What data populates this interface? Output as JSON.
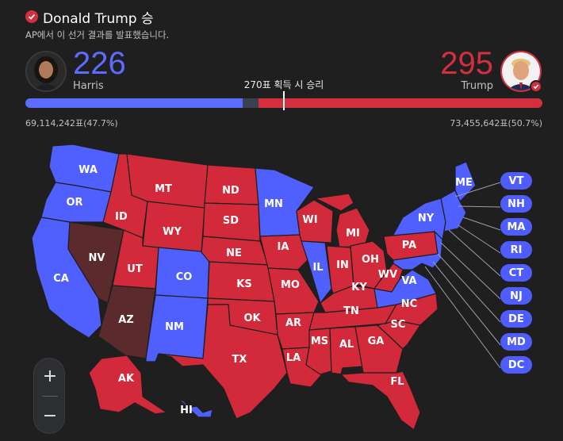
{
  "header": {
    "winner_title": "Donald Trump 승",
    "source_note": "AP에서 이 선거 결과를 발표했습니다."
  },
  "harris": {
    "votes": "226",
    "name": "Harris",
    "popular": "69,114,242표(47.7%)",
    "color": "#5b6cff",
    "electoral": 226
  },
  "trump": {
    "votes": "295",
    "name": "Trump",
    "popular": "73,455,642표(50.7%)",
    "color": "#d32f3f",
    "electoral": 295
  },
  "threshold": {
    "label": "270표 획득 시 승리",
    "value": 270,
    "total": 538
  },
  "states": {
    "WA": "WA",
    "OR": "OR",
    "CA": "CA",
    "NV": "NV",
    "ID": "ID",
    "MT": "MT",
    "WY": "WY",
    "UT": "UT",
    "AZ": "AZ",
    "CO": "CO",
    "NM": "NM",
    "ND": "ND",
    "SD": "SD",
    "NE": "NE",
    "KS": "KS",
    "OK": "OK",
    "TX": "TX",
    "MN": "MN",
    "IA": "IA",
    "MO": "MO",
    "AR": "AR",
    "LA": "LA",
    "WI": "WI",
    "IL": "IL",
    "MI": "MI",
    "IN": "IN",
    "OH": "OH",
    "KY": "KY",
    "TN": "TN",
    "MS": "MS",
    "AL": "AL",
    "GA": "GA",
    "FL": "FL",
    "SC": "SC",
    "NC": "NC",
    "VA": "VA",
    "WV": "WV",
    "PA": "PA",
    "NY": "NY",
    "ME": "ME",
    "AK": "AK",
    "HI": "HI"
  },
  "small_states": [
    "VT",
    "NH",
    "MA",
    "RI",
    "CT",
    "NJ",
    "DE",
    "MD",
    "DC"
  ],
  "zoom": {
    "plus": "+",
    "minus": "−"
  }
}
